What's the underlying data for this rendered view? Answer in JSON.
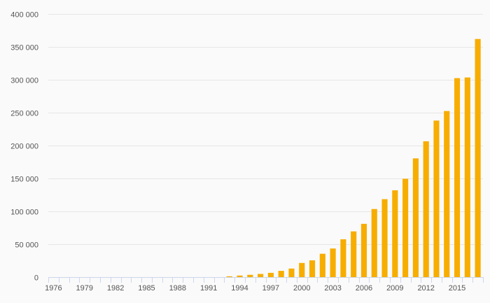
{
  "chart_data": {
    "type": "bar",
    "title": "",
    "xlabel": "",
    "ylabel": "",
    "categories": [
      "1976",
      "1977",
      "1978",
      "1979",
      "1980",
      "1981",
      "1982",
      "1983",
      "1984",
      "1985",
      "1986",
      "1987",
      "1988",
      "1989",
      "1990",
      "1991",
      "1992",
      "1993",
      "1994",
      "1995",
      "1996",
      "1997",
      "1998",
      "1999",
      "2000",
      "2001",
      "2002",
      "2003",
      "2004",
      "2005",
      "2006",
      "2007",
      "2008",
      "2009",
      "2010",
      "2011",
      "2012",
      "2013",
      "2014",
      "2015",
      "2016",
      "2017"
    ],
    "values": [
      0,
      0,
      0,
      0,
      0,
      0,
      0,
      0,
      0,
      0,
      0,
      0,
      0,
      0,
      0,
      0,
      0,
      1200,
      2400,
      3500,
      4800,
      6500,
      9500,
      13000,
      21500,
      25500,
      35500,
      43500,
      57500,
      69500,
      81000,
      103500,
      118500,
      132000,
      149500,
      180500,
      206500,
      238000,
      252500,
      302500,
      303500,
      362000
    ],
    "x_tick_labels": [
      "1976",
      "1979",
      "1982",
      "1985",
      "1988",
      "1991",
      "1994",
      "1997",
      "2000",
      "2003",
      "2006",
      "2009",
      "2012",
      "2015"
    ],
    "y_tick_labels": [
      "0",
      "50 000",
      "100 000",
      "150 000",
      "200 000",
      "250 000",
      "300 000",
      "350 000",
      "400 000"
    ],
    "y_ticks": [
      0,
      50000,
      100000,
      150000,
      200000,
      250000,
      300000,
      350000,
      400000
    ],
    "ylim": [
      0,
      400000
    ],
    "grid": true,
    "colors": {
      "bar": "#f7ad00",
      "grid": "#e6e6e6",
      "axis": "#ccd6eb",
      "text": "#555555"
    }
  }
}
